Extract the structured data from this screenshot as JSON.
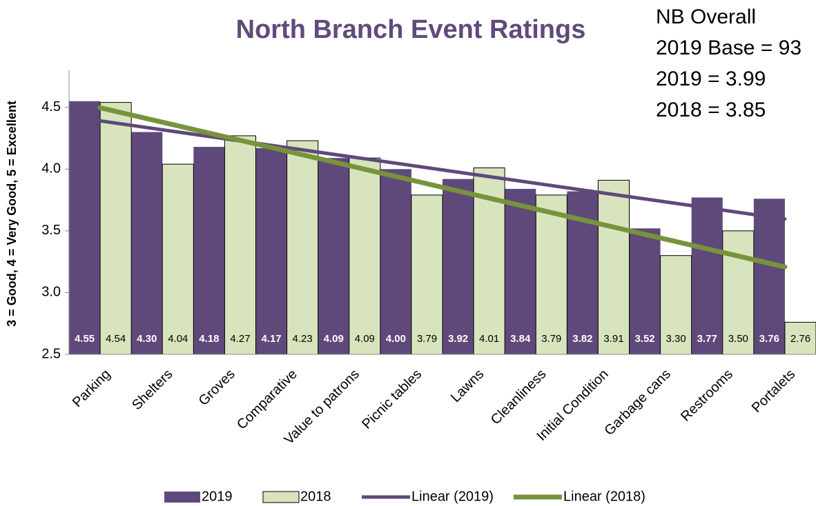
{
  "chart_data": {
    "type": "bar",
    "title": "North Branch Event Ratings",
    "y_label": "3 = Good, 4 = Very Good, 5 = Excellent",
    "annotations": [
      "NB Overall",
      "2019 Base = 93",
      "2019 = 3.99",
      "2018 = 3.85"
    ],
    "categories": [
      "Parking",
      "Shelters",
      "Groves",
      "Comparative",
      "Value to patrons",
      "Picnic tables",
      "Lawns",
      "Cleanliness",
      "Initial Condition",
      "Garbage cans",
      "Restrooms",
      "Portalets"
    ],
    "series": [
      {
        "name": "2019",
        "color": "#5f497a",
        "values": [
          4.55,
          4.3,
          4.18,
          4.17,
          4.09,
          4.0,
          3.92,
          3.84,
          3.82,
          3.52,
          3.77,
          3.76
        ],
        "value_labels": [
          "4.55",
          "4.30",
          "4.18",
          "4.17",
          "4.09",
          "4.00",
          "3.92",
          "3.84",
          "3.82",
          "3.52",
          "3.77",
          "3.76"
        ]
      },
      {
        "name": "2018",
        "color": "#d7e4bd",
        "values": [
          4.54,
          4.04,
          4.27,
          4.23,
          4.09,
          3.79,
          4.01,
          3.79,
          3.91,
          3.3,
          3.5,
          2.76
        ],
        "value_labels": [
          "4.54",
          "4.04",
          "4.27",
          "4.23",
          "4.09",
          "3.79",
          "4.01",
          "3.79",
          "3.91",
          "3.30",
          "3.50",
          "2.76"
        ]
      }
    ],
    "trendlines": [
      {
        "name": "Linear (2019)",
        "color": "#5f497a"
      },
      {
        "name": "Linear (2018)",
        "color": "#77933c"
      }
    ],
    "ylim": [
      2.5,
      4.8
    ],
    "yticks": [
      2.5,
      {
        "value": 3.0,
        "label": "3.0"
      },
      3.5,
      {
        "value": 4.0,
        "label": "4.0"
      },
      4.5
    ]
  }
}
